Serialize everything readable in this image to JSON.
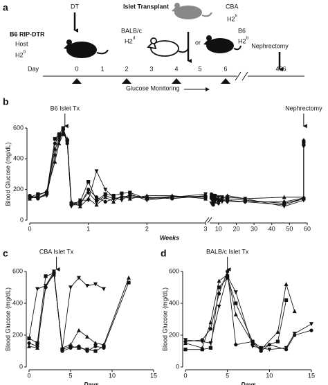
{
  "schematic": {
    "panel_label": "a",
    "dt": "DT",
    "islet_transplant": "Islet Transplant",
    "host": {
      "name": "B6 RIP-DTR",
      "role": "Host",
      "h2": "H2",
      "h2_sup": "b"
    },
    "donors": [
      {
        "name": "BALB/c",
        "h2": "H2",
        "h2_sup": "d"
      },
      {
        "name": "CBA",
        "h2": "H2",
        "h2_sup": "k"
      },
      {
        "name": "B6",
        "h2": "H2",
        "h2_sup": "b"
      }
    ],
    "or": "or",
    "nephrectomy": "Nephrectomy",
    "timeline_label": "Day",
    "days": [
      "0",
      "1",
      "2",
      "3",
      "4",
      "5",
      "6",
      "406"
    ],
    "monitoring": "Glucose Monitoring"
  },
  "chart_data": [
    {
      "type": "line",
      "panel_label": "b",
      "ylabel": "Blood Glucose (mg/dL)",
      "xlabel": "Weeks",
      "xlim": [
        0,
        3
      ],
      "xticks": [
        0,
        1,
        2,
        3
      ],
      "ylim": [
        0,
        600
      ],
      "yticks": [
        0,
        200,
        400,
        600
      ],
      "annotation": {
        "text": "B6 Islet Tx",
        "x": 0.6
      },
      "x": [
        0,
        0.14,
        0.29,
        0.43,
        0.5,
        0.57,
        0.64,
        0.71,
        0.86,
        1.0,
        1.14,
        1.29,
        1.43,
        1.57,
        1.71,
        2.0,
        2.43,
        3.0
      ],
      "series": [
        {
          "marker": "square",
          "color": "#111",
          "values": [
            150,
            170,
            180,
            530,
            560,
            600,
            520,
            110,
            120,
            250,
            130,
            170,
            160,
            175,
            180,
            140,
            150,
            150
          ]
        },
        {
          "marker": "circle",
          "color": "#111",
          "values": [
            160,
            140,
            170,
            500,
            540,
            590,
            500,
            100,
            100,
            200,
            150,
            120,
            140,
            150,
            160,
            150,
            140,
            160
          ]
        },
        {
          "marker": "triangle-down",
          "color": "#111",
          "values": [
            155,
            150,
            160,
            420,
            520,
            580,
            510,
            90,
            130,
            130,
            320,
            200,
            150,
            130,
            170,
            130,
            150,
            170
          ]
        },
        {
          "marker": "triangle",
          "color": "#111",
          "values": [
            140,
            160,
            190,
            380,
            500,
            560,
            530,
            120,
            90,
            140,
            100,
            150,
            120,
            160,
            140,
            160,
            160,
            140
          ]
        },
        {
          "marker": "diamond",
          "color": "#111",
          "values": [
            150,
            145,
            175,
            460,
            530,
            595,
            515,
            105,
            110,
            180,
            120,
            160,
            140,
            150,
            150,
            145,
            155,
            155
          ]
        }
      ]
    },
    {
      "type": "line",
      "xlim": [
        5,
        60
      ],
      "xticks": [
        10,
        20,
        30,
        40,
        50,
        60
      ],
      "ylim": [
        0,
        600
      ],
      "annotation": {
        "text": "Nephrectomy",
        "x": 58
      },
      "x": [
        6,
        7,
        8,
        10,
        12,
        15,
        25,
        47,
        58,
        58
      ],
      "series": [
        {
          "marker": "square",
          "color": "#111",
          "values": [
            150,
            120,
            160,
            130,
            150,
            140,
            130,
            110,
            140,
            510
          ]
        },
        {
          "marker": "circle",
          "color": "#111",
          "values": [
            170,
            100,
            140,
            120,
            130,
            130,
            120,
            100,
            140,
            490
          ]
        },
        {
          "marker": "triangle-down",
          "color": "#111",
          "values": [
            110,
            160,
            130,
            150,
            120,
            150,
            140,
            90,
            130,
            480
          ]
        },
        {
          "marker": "triangle",
          "color": "#111",
          "values": [
            150,
            140,
            120,
            140,
            140,
            160,
            140,
            150,
            150,
            500
          ]
        },
        {
          "marker": "diamond",
          "color": "#111",
          "values": [
            140,
            130,
            150,
            110,
            130,
            120,
            120,
            120,
            145,
            520
          ]
        }
      ]
    },
    {
      "type": "line",
      "panel_label": "c",
      "ylabel": "Blood Glucose (mg/dL)",
      "xlabel": "Days",
      "xlim": [
        0,
        15
      ],
      "xticks": [
        0,
        5,
        10,
        15
      ],
      "ylim": [
        0,
        600
      ],
      "yticks": [
        0,
        200,
        400,
        600
      ],
      "annotation": {
        "text": "CBA Islet Tx",
        "x": 3.3
      },
      "series": [
        {
          "marker": "triangle-down",
          "color": "#111",
          "x": [
            0,
            1,
            2,
            3,
            4,
            5,
            6,
            7,
            8,
            9
          ],
          "values": [
            180,
            490,
            510,
            600,
            110,
            500,
            560,
            510,
            520,
            490
          ]
        },
        {
          "marker": "square",
          "color": "#111",
          "x": [
            0,
            1,
            2,
            3,
            4,
            5,
            6,
            7,
            8,
            9,
            12
          ],
          "values": [
            180,
            150,
            570,
            590,
            110,
            130,
            120,
            110,
            100,
            130,
            530
          ]
        },
        {
          "marker": "triangle",
          "color": "#111",
          "x": [
            0,
            1,
            2,
            3,
            4,
            5,
            6,
            7,
            8,
            9,
            12
          ],
          "values": [
            130,
            120,
            510,
            580,
            120,
            140,
            230,
            190,
            150,
            140,
            560
          ]
        },
        {
          "marker": "circle",
          "color": "#111",
          "x": [
            0,
            1,
            2,
            3,
            4,
            5,
            6,
            7,
            8,
            9
          ],
          "values": [
            150,
            130,
            500,
            590,
            100,
            120,
            130,
            100,
            130,
            120
          ]
        }
      ]
    },
    {
      "type": "line",
      "panel_label": "d",
      "ylabel": "Blood Glucose (mg/dL)",
      "xlabel": "Days",
      "xlim": [
        0,
        15
      ],
      "xticks": [
        0,
        5,
        10,
        15
      ],
      "ylim": [
        0,
        600
      ],
      "yticks": [
        0,
        200,
        400,
        600
      ],
      "annotation": {
        "text": "BALB/c Islet Tx",
        "x": 5
      },
      "series": [
        {
          "marker": "triangle",
          "color": "#111",
          "x": [
            0,
            2,
            3,
            4,
            5,
            6,
            8,
            9,
            11,
            12,
            13
          ],
          "values": [
            150,
            120,
            280,
            540,
            580,
            330,
            150,
            110,
            220,
            520,
            350
          ]
        },
        {
          "marker": "square",
          "color": "#111",
          "x": [
            0,
            2,
            3,
            4,
            5,
            6,
            8,
            9,
            11,
            12
          ],
          "values": [
            110,
            110,
            120,
            500,
            560,
            400,
            160,
            120,
            160,
            420
          ]
        },
        {
          "marker": "triangle-down",
          "color": "#111",
          "x": [
            0,
            2,
            3,
            4,
            5,
            6,
            8,
            10,
            12,
            13,
            15
          ],
          "values": [
            170,
            160,
            150,
            380,
            570,
            470,
            130,
            110,
            120,
            210,
            270
          ]
        },
        {
          "marker": "circle",
          "color": "#111",
          "x": [
            0,
            2,
            3,
            4,
            5,
            6,
            8,
            9,
            10,
            12,
            13,
            15
          ],
          "values": [
            160,
            170,
            240,
            460,
            600,
            140,
            160,
            100,
            140,
            110,
            200,
            230
          ]
        }
      ]
    }
  ]
}
